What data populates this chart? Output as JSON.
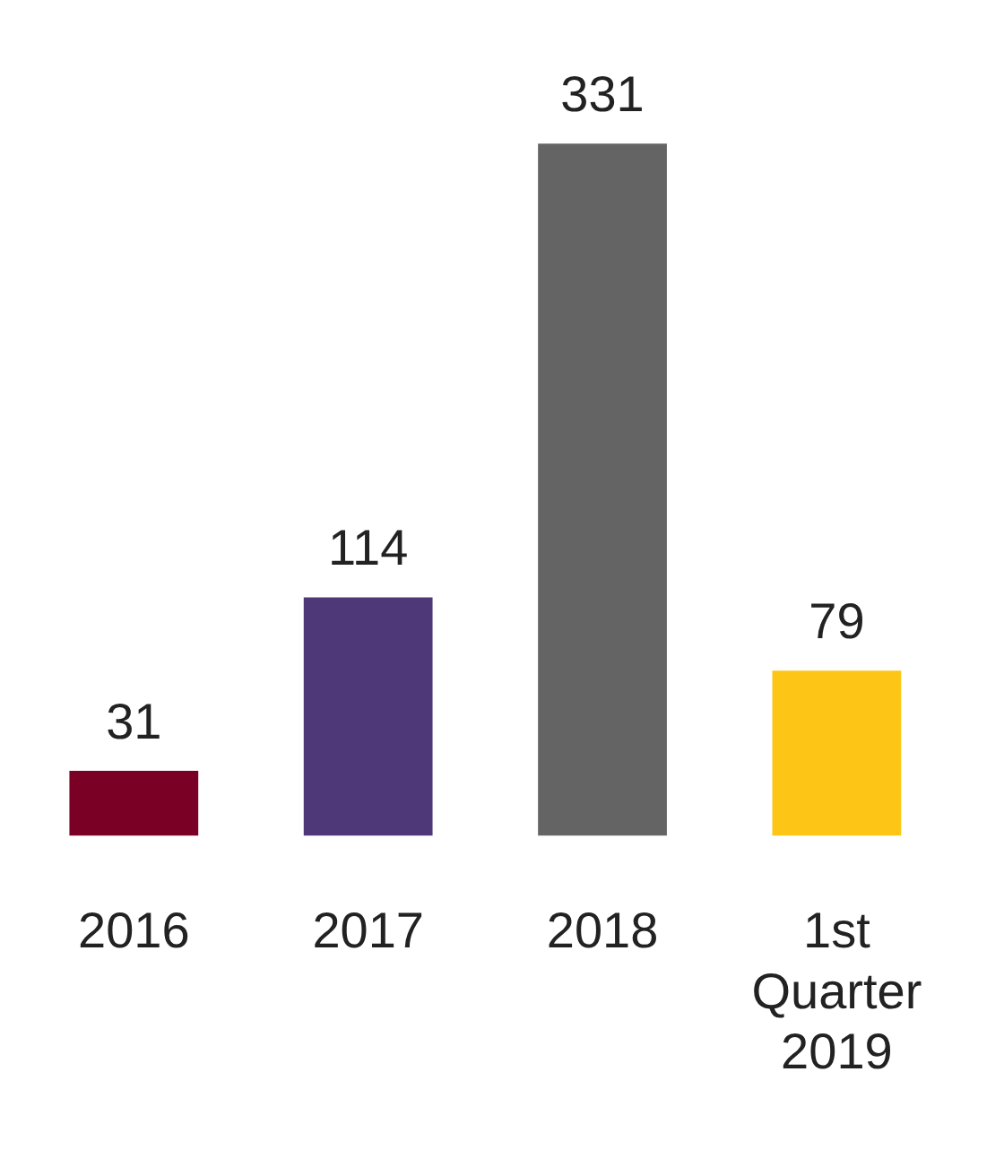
{
  "chart_data": {
    "type": "bar",
    "categories": [
      "2016",
      "2017",
      "2018",
      "1st Quarter 2019"
    ],
    "values": [
      31,
      114,
      331,
      79
    ],
    "colors": [
      "#7a0026",
      "#4f3877",
      "#646464",
      "#fdc515"
    ],
    "data_labels": true,
    "grid": false,
    "legend": false
  }
}
